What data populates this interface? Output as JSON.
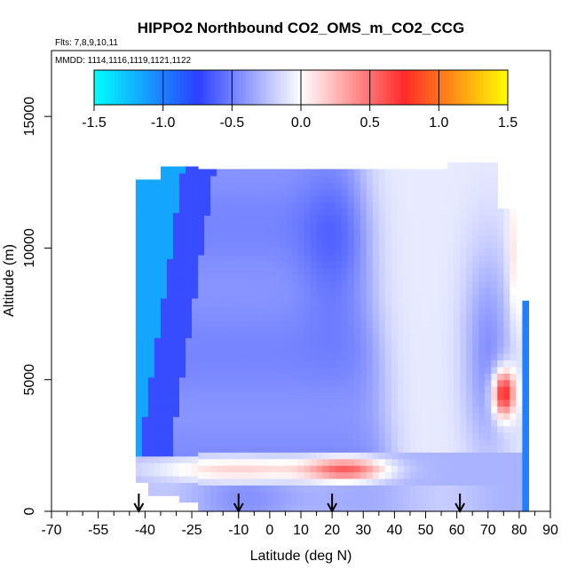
{
  "chart_data": {
    "type": "heatmap",
    "title": "HIPPO2 Northbound CO2_OMS_m_CO2_CCG",
    "flights_label": "Flts: 7,8,9,10,11",
    "dates_label": "MMDD: 1114,1116,1119,1121,1122",
    "xlabel": "Latitude (deg N)",
    "ylabel": "Altitude (m)",
    "xlim": [
      -70,
      90
    ],
    "ylim": [
      0,
      17500
    ],
    "x_ticks": [
      -70,
      -55,
      -40,
      -25,
      -10,
      0,
      10,
      20,
      30,
      40,
      50,
      60,
      70,
      80,
      90
    ],
    "x_tick_labels": [
      "-70",
      "-55",
      "-40",
      "-25",
      "-10",
      "0",
      "10",
      "20",
      "30",
      "40",
      "50",
      "60",
      "70",
      "80",
      "90"
    ],
    "x_minor_ticks": [
      -65,
      -60,
      -50,
      -45,
      -35,
      -30,
      -20,
      -15,
      -5,
      5,
      15,
      25,
      35,
      45,
      55,
      65,
      75,
      85
    ],
    "y_ticks": [
      0,
      5000,
      10000,
      15000
    ],
    "y_tick_labels": [
      "0",
      "5000",
      "10000",
      "15000"
    ],
    "colorbar": {
      "range": [
        -1.5,
        1.5
      ],
      "ticks": [
        -1.5,
        -1.0,
        -0.5,
        0.0,
        0.5,
        1.0,
        1.5
      ],
      "tick_labels": [
        "-1.5",
        "-1.0",
        "-0.5",
        "0.0",
        "0.5",
        "1.0",
        "1.5"
      ],
      "colors": [
        "#00ffff",
        "#2a40ff",
        "#ffffff",
        "#ff2a2a",
        "#ffff00"
      ]
    },
    "flight_markers_lat": [
      -42,
      -10,
      20,
      61
    ],
    "cells": {
      "lat_step": 2,
      "alt_step": 250,
      "description": "Gridded CO2 difference (ppm) by latitude and altitude, estimated from the color field"
    },
    "regions": [
      {
        "lat": [
          -43,
          -40
        ],
        "alt": [
          1000,
          12500
        ],
        "value": -1.2
      },
      {
        "lat": [
          -40,
          -30
        ],
        "alt": [
          1000,
          13000
        ],
        "value": -0.6
      },
      {
        "lat": [
          -30,
          10
        ],
        "alt": [
          2000,
          13000
        ],
        "value": -0.45
      },
      {
        "lat": [
          10,
          35
        ],
        "alt": [
          2000,
          13000
        ],
        "value": -0.4
      },
      {
        "lat": [
          35,
          60
        ],
        "alt": [
          2000,
          13000
        ],
        "value": 0.0
      },
      {
        "lat": [
          60,
          80
        ],
        "alt": [
          1000,
          13000
        ],
        "value": -0.1
      },
      {
        "lat": [
          72,
          78
        ],
        "alt": [
          3500,
          5500
        ],
        "value": 0.6
      },
      {
        "lat": [
          10,
          38
        ],
        "alt": [
          1200,
          2000
        ],
        "value": 0.35
      },
      {
        "lat": [
          -30,
          80
        ],
        "alt": [
          0,
          1000
        ],
        "value": -0.3
      }
    ]
  }
}
